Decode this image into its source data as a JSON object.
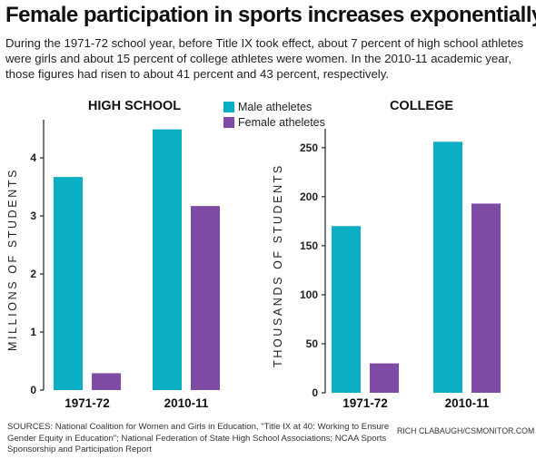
{
  "headline": "Female participation in sports increases exponentially",
  "subtext": "During the 1971-72 school year, before Title IX took effect, about 7 percent of high school athletes were girls and about 15 percent of college athletes were women. In the 2010-11 academic year, those figures had risen to about 41 percent and 43 percent, respectively.",
  "legend": {
    "items": [
      {
        "label": "Male atheletes",
        "color": "#0aafc4"
      },
      {
        "label": "Female atheletes",
        "color": "#7f4ba5"
      }
    ]
  },
  "chart_data": [
    {
      "type": "bar",
      "title": "HIGH SCHOOL",
      "ylabel": "MILLIONS OF STUDENTS",
      "categories": [
        "1971-72",
        "2010-11"
      ],
      "ylim": [
        0,
        4.5
      ],
      "yticks": [
        0,
        1,
        2,
        3,
        4
      ],
      "series": [
        {
          "name": "Male atheletes",
          "color": "#0aafc4",
          "values": [
            3.67,
            4.49
          ]
        },
        {
          "name": "Female atheletes",
          "color": "#7f4ba5",
          "values": [
            0.29,
            3.17
          ]
        }
      ],
      "grid": false
    },
    {
      "type": "bar",
      "title": "COLLEGE",
      "ylabel": "THOUSANDS OF STUDENTS",
      "categories": [
        "1971-72",
        "2010-11"
      ],
      "ylim": [
        0,
        260
      ],
      "yticks": [
        0,
        50,
        100,
        150,
        200,
        250
      ],
      "series": [
        {
          "name": "Male atheletes",
          "color": "#0aafc4",
          "values": [
            170,
            256
          ]
        },
        {
          "name": "Female atheletes",
          "color": "#7f4ba5",
          "values": [
            30,
            193
          ]
        }
      ],
      "grid": false
    }
  ],
  "sources": "SOURCES: National Coalition for Women and Girls in Education, \"Title IX at 40: Working to Ensure Gender Equity in Education\"; National Federation of State High School Associations; NCAA Sports Sponsorship and Participation Report",
  "credit": "RICH CLABAUGH/CSMONITOR.COM"
}
